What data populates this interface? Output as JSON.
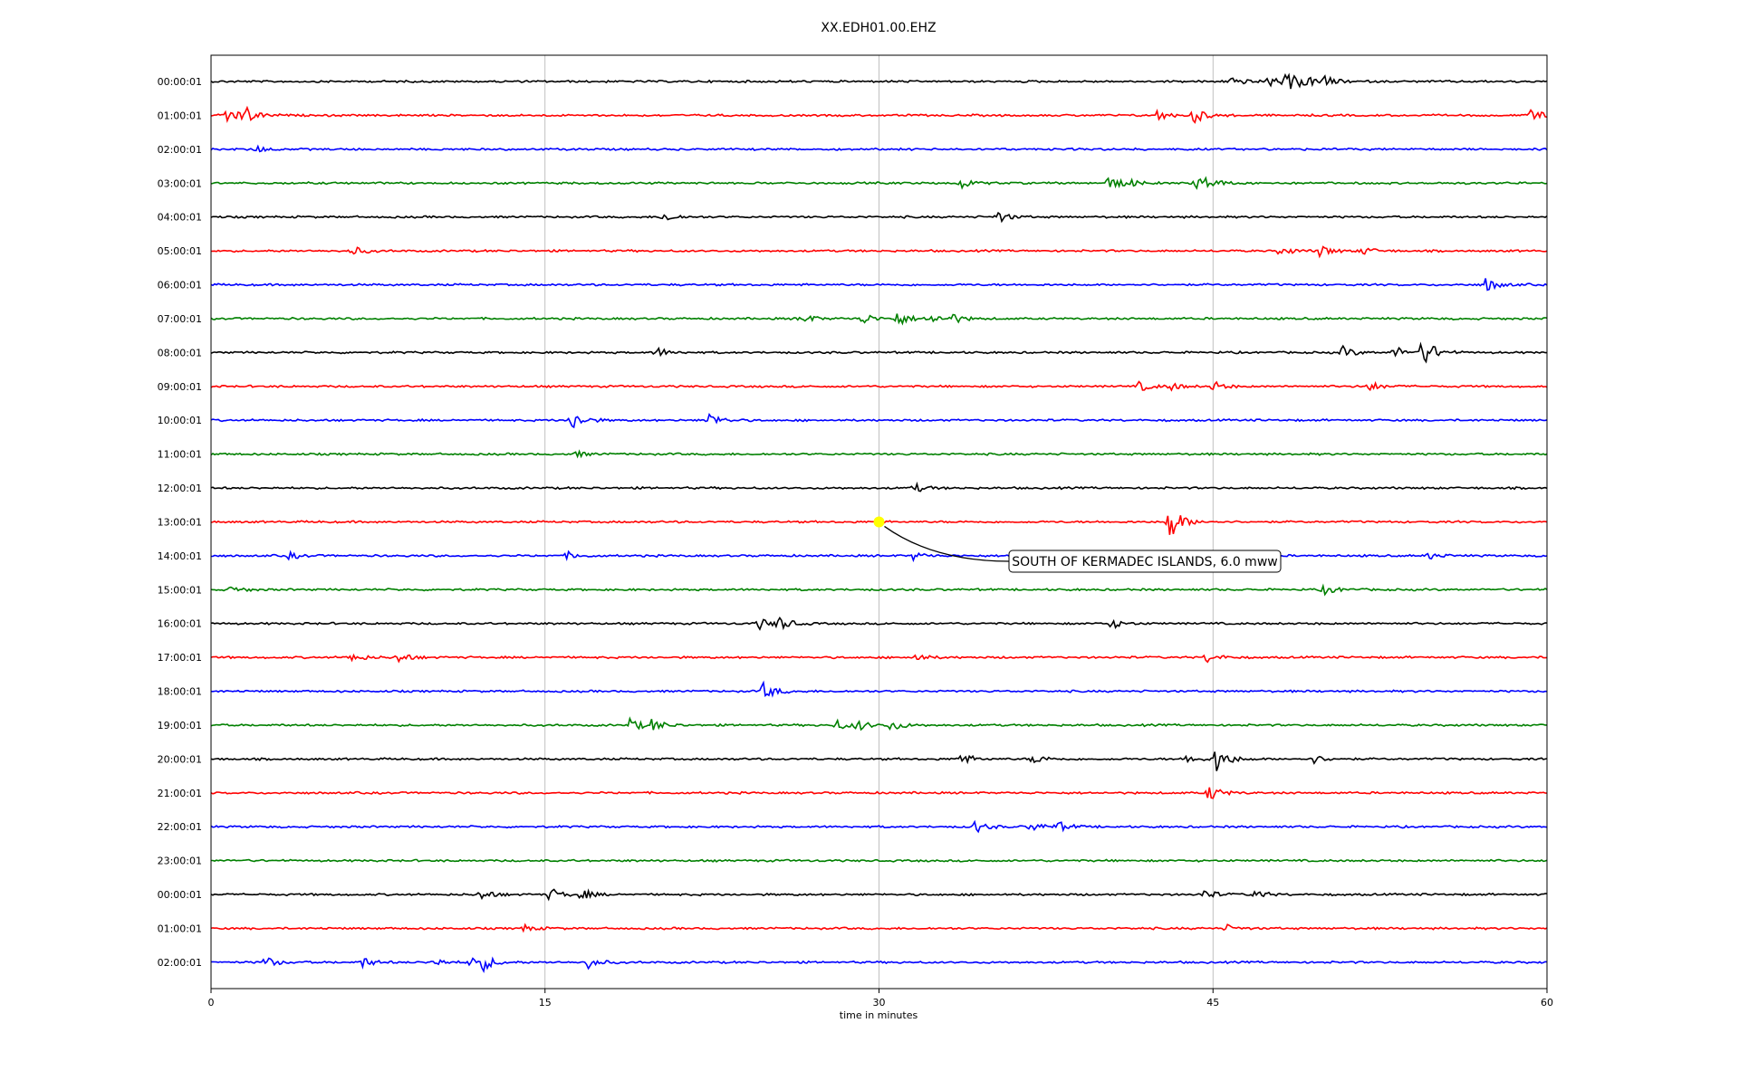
{
  "chart_data": {
    "type": "line",
    "title": "XX.EDH01.00.EHZ",
    "xlabel": "time in minutes",
    "ylabel": "",
    "xlim": [
      0,
      60
    ],
    "x_ticks": [
      0,
      15,
      30,
      45,
      60
    ],
    "grid": "vertical",
    "line_colors": [
      "#000000",
      "#ff0000",
      "#0000ff",
      "#008000"
    ],
    "rows": [
      {
        "label": "00:00:01",
        "events": [
          {
            "t": 45.8,
            "a": 0.35
          },
          {
            "t": 47.5,
            "a": 0.3
          },
          {
            "t": 48.2,
            "a": 0.3
          },
          {
            "t": 48.5,
            "a": 0.25
          },
          {
            "t": 49.0,
            "a": 0.3
          },
          {
            "t": 50.0,
            "a": 0.3
          }
        ]
      },
      {
        "label": "01:00:01",
        "events": [
          {
            "t": 0.7,
            "a": 0.6
          },
          {
            "t": 1.5,
            "a": 0.45
          },
          {
            "t": 42.5,
            "a": 0.3
          },
          {
            "t": 44.1,
            "a": 0.5
          },
          {
            "t": 59.2,
            "a": 0.45
          }
        ]
      },
      {
        "label": "02:00:01",
        "events": [
          {
            "t": 2.0,
            "a": 0.2
          }
        ]
      },
      {
        "label": "03:00:01",
        "events": [
          {
            "t": 33.7,
            "a": 0.3
          },
          {
            "t": 40.3,
            "a": 0.35
          },
          {
            "t": 41.0,
            "a": 0.3
          },
          {
            "t": 44.2,
            "a": 0.35
          },
          {
            "t": 44.7,
            "a": 0.3
          }
        ]
      },
      {
        "label": "04:00:01",
        "events": [
          {
            "t": 20.3,
            "a": 0.3
          },
          {
            "t": 35.3,
            "a": 0.35
          }
        ]
      },
      {
        "label": "05:00:01",
        "events": [
          {
            "t": 6.3,
            "a": 0.3
          },
          {
            "t": 48.0,
            "a": 0.3
          },
          {
            "t": 49.8,
            "a": 0.35
          },
          {
            "t": 51.7,
            "a": 0.25
          }
        ]
      },
      {
        "label": "06:00:01",
        "events": [
          {
            "t": 57.2,
            "a": 0.45
          }
        ]
      },
      {
        "label": "07:00:01",
        "events": [
          {
            "t": 26.5,
            "a": 0.3
          },
          {
            "t": 29.2,
            "a": 0.35
          },
          {
            "t": 30.8,
            "a": 0.45
          },
          {
            "t": 32.2,
            "a": 0.3
          },
          {
            "t": 33.3,
            "a": 0.25
          }
        ]
      },
      {
        "label": "08:00:01",
        "events": [
          {
            "t": 20.0,
            "a": 0.3
          },
          {
            "t": 50.8,
            "a": 0.35
          },
          {
            "t": 53.1,
            "a": 0.4
          },
          {
            "t": 54.4,
            "a": 1.0
          }
        ]
      },
      {
        "label": "09:00:01",
        "events": [
          {
            "t": 41.7,
            "a": 0.3
          },
          {
            "t": 43.0,
            "a": 0.25
          },
          {
            "t": 45.0,
            "a": 0.3
          },
          {
            "t": 52.0,
            "a": 0.3
          }
        ]
      },
      {
        "label": "10:00:01",
        "events": [
          {
            "t": 16.2,
            "a": 0.6
          },
          {
            "t": 22.3,
            "a": 0.5
          }
        ]
      },
      {
        "label": "11:00:01",
        "events": [
          {
            "t": 16.3,
            "a": 0.2
          }
        ]
      },
      {
        "label": "12:00:01",
        "events": [
          {
            "t": 31.6,
            "a": 0.25
          }
        ]
      },
      {
        "label": "13:00:01",
        "events": [
          {
            "t": 43.0,
            "a": 1.2
          }
        ]
      },
      {
        "label": "14:00:01",
        "events": [
          {
            "t": 3.5,
            "a": 0.2
          },
          {
            "t": 16.0,
            "a": 0.2
          },
          {
            "t": 31.5,
            "a": 0.25
          },
          {
            "t": 54.7,
            "a": 0.2
          }
        ]
      },
      {
        "label": "15:00:01",
        "events": [
          {
            "t": 0.9,
            "a": 0.2
          },
          {
            "t": 50.0,
            "a": 0.3
          }
        ]
      },
      {
        "label": "16:00:01",
        "events": [
          {
            "t": 24.6,
            "a": 0.35
          },
          {
            "t": 25.5,
            "a": 0.4
          },
          {
            "t": 40.4,
            "a": 0.3
          }
        ]
      },
      {
        "label": "17:00:01",
        "events": [
          {
            "t": 6.3,
            "a": 0.3
          },
          {
            "t": 8.4,
            "a": 0.35
          },
          {
            "t": 31.6,
            "a": 0.25
          },
          {
            "t": 44.7,
            "a": 0.3
          }
        ]
      },
      {
        "label": "18:00:01",
        "events": [
          {
            "t": 24.8,
            "a": 0.55
          }
        ]
      },
      {
        "label": "19:00:01",
        "events": [
          {
            "t": 18.8,
            "a": 0.4
          },
          {
            "t": 19.8,
            "a": 0.35
          },
          {
            "t": 28.0,
            "a": 0.35
          },
          {
            "t": 29.0,
            "a": 0.3
          },
          {
            "t": 30.5,
            "a": 0.35
          }
        ]
      },
      {
        "label": "20:00:01",
        "events": [
          {
            "t": 33.6,
            "a": 0.4
          },
          {
            "t": 36.9,
            "a": 0.3
          },
          {
            "t": 43.8,
            "a": 0.3
          },
          {
            "t": 45.1,
            "a": 0.9
          },
          {
            "t": 49.5,
            "a": 0.25
          }
        ]
      },
      {
        "label": "21:00:01",
        "events": [
          {
            "t": 44.8,
            "a": 0.5
          }
        ]
      },
      {
        "label": "22:00:01",
        "events": [
          {
            "t": 34.3,
            "a": 0.35
          },
          {
            "t": 36.8,
            "a": 0.3
          },
          {
            "t": 38.0,
            "a": 0.3
          }
        ]
      },
      {
        "label": "23:00:01",
        "events": []
      },
      {
        "label": "00:00:01",
        "events": [
          {
            "t": 12.1,
            "a": 0.35
          },
          {
            "t": 15.2,
            "a": 0.4
          },
          {
            "t": 16.6,
            "a": 0.3
          },
          {
            "t": 44.6,
            "a": 0.3
          },
          {
            "t": 46.8,
            "a": 0.3
          }
        ]
      },
      {
        "label": "01:00:01",
        "events": [
          {
            "t": 14.0,
            "a": 0.2
          },
          {
            "t": 45.6,
            "a": 0.2
          }
        ]
      },
      {
        "label": "02:00:01",
        "events": [
          {
            "t": 2.4,
            "a": 0.35
          },
          {
            "t": 6.8,
            "a": 0.3
          },
          {
            "t": 9.9,
            "a": 0.3
          },
          {
            "t": 11.7,
            "a": 0.5
          },
          {
            "t": 12.2,
            "a": 0.35
          },
          {
            "t": 16.8,
            "a": 0.45
          }
        ]
      }
    ],
    "annotation": {
      "text": "SOUTH OF KERMADEC ISLANDS, 6.0 mww",
      "row": 13,
      "t": 30.0,
      "marker_color": "#ffff00"
    }
  }
}
